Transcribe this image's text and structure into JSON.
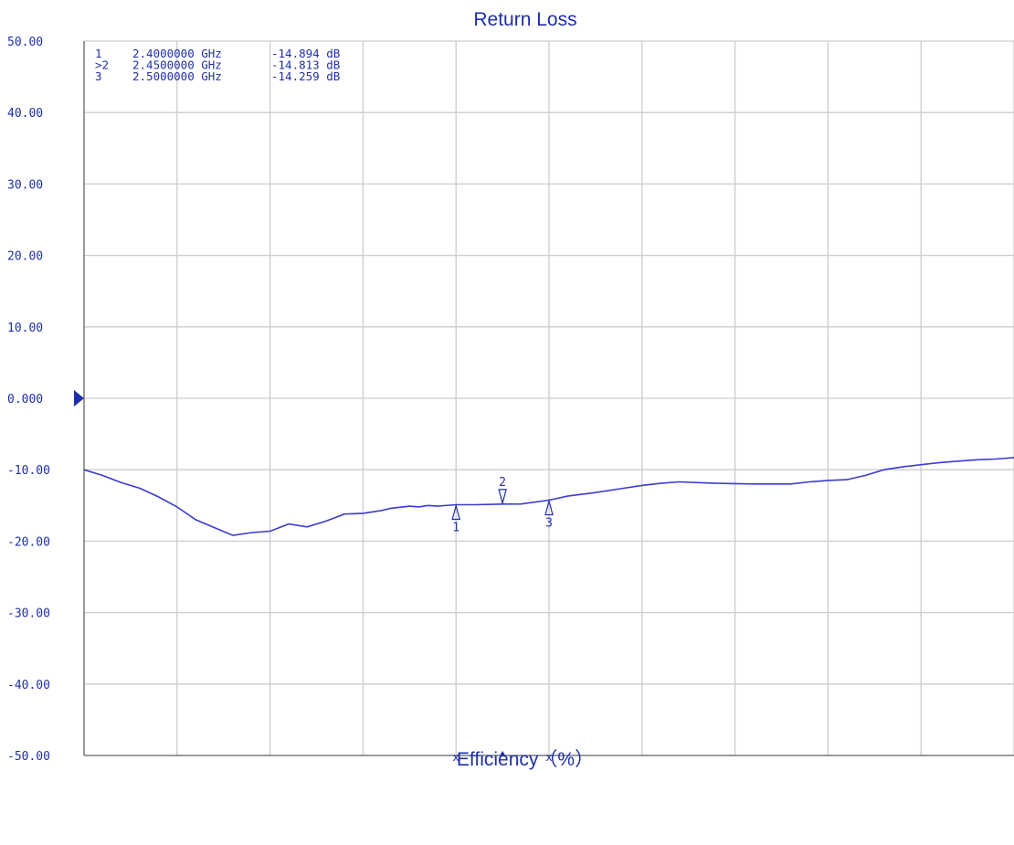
{
  "chart_data": {
    "type": "line",
    "title": "Return Loss",
    "footer": "Efficiency（%）",
    "ylim": [
      -50,
      50
    ],
    "xlim": [
      2.0,
      3.0
    ],
    "yticks": [
      "50.00",
      "40.00",
      "30.00",
      "20.00",
      "10.00",
      "0.000",
      "-10.00",
      "-20.00",
      "-30.00",
      "-40.00",
      "-50.00"
    ],
    "ytick_values": [
      50,
      40,
      30,
      20,
      10,
      0,
      -10,
      -20,
      -30,
      -40,
      -50
    ],
    "reference_level": "0.000",
    "grid": true,
    "colors": {
      "trace": "#3b3bcf",
      "text": "#1f2fa8",
      "grid": "#cccccc"
    },
    "series": [
      {
        "x": [
          2.0,
          2.02,
          2.04,
          2.06,
          2.08,
          2.1,
          2.12,
          2.14,
          2.16,
          2.18,
          2.2,
          2.22,
          2.24,
          2.26,
          2.28,
          2.3,
          2.32,
          2.33,
          2.35,
          2.36,
          2.37,
          2.38,
          2.4,
          2.42,
          2.44,
          2.45,
          2.47,
          2.5,
          2.52,
          2.55,
          2.58,
          2.6,
          2.62,
          2.64,
          2.66,
          2.68,
          2.7,
          2.72,
          2.74,
          2.76,
          2.78,
          2.8,
          2.82,
          2.84,
          2.86,
          2.88,
          2.9,
          2.92,
          2.94,
          2.96,
          2.98,
          3.0
        ],
        "y": [
          -10.0,
          -10.8,
          -11.8,
          -12.6,
          -13.8,
          -15.2,
          -17.0,
          -18.1,
          -19.2,
          -18.8,
          -18.6,
          -17.6,
          -18.0,
          -17.2,
          -16.2,
          -16.1,
          -15.7,
          -15.4,
          -15.1,
          -15.2,
          -15.0,
          -15.1,
          -14.894,
          -14.9,
          -14.85,
          -14.813,
          -14.8,
          -14.259,
          -13.7,
          -13.2,
          -12.6,
          -12.2,
          -11.9,
          -11.7,
          -11.8,
          -11.9,
          -11.95,
          -12.0,
          -12.0,
          -12.0,
          -11.7,
          -11.5,
          -11.4,
          -10.8,
          -10.0,
          -9.6,
          -9.3,
          -9.0,
          -8.8,
          -8.6,
          -8.5,
          -8.3
        ]
      }
    ],
    "markers": [
      {
        "num": "1",
        "list_prefix": "1",
        "freq": "2.4000000 GHz",
        "value": "-14.894 dB",
        "x": 2.4,
        "y": -14.894,
        "dir": "below"
      },
      {
        "num": "2",
        "list_prefix": ">2",
        "freq": "2.4500000 GHz",
        "value": "-14.813 dB",
        "x": 2.45,
        "y": -14.813,
        "dir": "above"
      },
      {
        "num": "3",
        "list_prefix": "3",
        "freq": "2.5000000 GHz",
        "value": "-14.259 dB",
        "x": 2.5,
        "y": -14.259,
        "dir": "below"
      }
    ]
  }
}
